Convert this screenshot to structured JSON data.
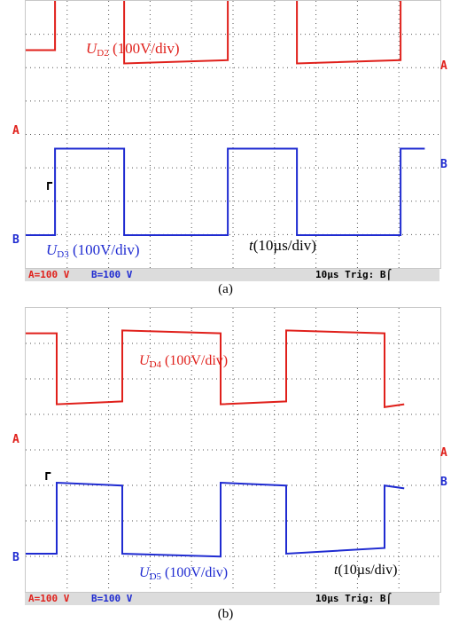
{
  "panels": [
    {
      "caption": "(a)",
      "status_a": "A=100 V",
      "status_b": "B=100 V",
      "status_time": "10µs Trig: B⌠",
      "trace_a": {
        "symbol": "U",
        "sub": "D2",
        "unit": "(100V/div)",
        "color": "#e0201b"
      },
      "trace_b": {
        "symbol": "U",
        "sub": "D3",
        "unit": "(100V/div)",
        "color": "#1f2bd1"
      },
      "time_label": {
        "symbol": "t",
        "unit": "(10µs/div)"
      }
    },
    {
      "caption": "(b)",
      "status_a": "A=100 V",
      "status_b": "B=100 V",
      "status_time": "10µs Trig: B⌠",
      "trace_a": {
        "symbol": "U",
        "sub": "D4",
        "unit": "(100V/div)",
        "color": "#e0201b"
      },
      "trace_b": {
        "symbol": "U",
        "sub": "D5",
        "unit": "(100V/div)",
        "color": "#1f2bd1"
      },
      "time_label": {
        "symbol": "t",
        "unit": "(10µs/div)"
      }
    }
  ],
  "channel_labels": {
    "a": "A",
    "b": "B"
  },
  "colors": {
    "status_a": "#e0201b",
    "status_b": "#1f2bd1",
    "grid": "#555555",
    "status_bg": "#dcdcdc"
  },
  "chart_data": [
    {
      "type": "line",
      "xlabel": "t(10µs/div)",
      "x_unit": "µs",
      "divisions": {
        "x": 10,
        "y": 8
      },
      "series": [
        {
          "name": "UD2",
          "volts_per_div": 100,
          "x": [
            0,
            4.5,
            4.5,
            14.5,
            14.5,
            29.5,
            29.5,
            39.5,
            39.5,
            54.5,
            54.5,
            58
          ],
          "y_div": [
            2.6,
            2.6,
            5.1,
            5.0,
            2.2,
            2.3,
            5.1,
            5.0,
            2.2,
            2.3,
            5.0,
            5.0
          ]
        },
        {
          "name": "UD3",
          "volts_per_div": 100,
          "x": [
            0,
            4.5,
            4.5,
            14.5,
            14.5,
            29.5,
            29.5,
            39.5,
            39.5,
            54.5,
            54.5,
            58
          ],
          "y_div": [
            0,
            0,
            2.6,
            2.6,
            0,
            0,
            2.6,
            2.6,
            0,
            0,
            2.6,
            2.6
          ]
        }
      ]
    },
    {
      "type": "line",
      "xlabel": "t(10µs/div)",
      "x_unit": "µs",
      "divisions": {
        "x": 10,
        "y": 8
      },
      "series": [
        {
          "name": "UD4",
          "volts_per_div": 100,
          "x": [
            0,
            5.0,
            5.0,
            15.0,
            15.0,
            30.0,
            30.0,
            40.0,
            40.0,
            55.0,
            55.0,
            58
          ],
          "y_div": [
            5.2,
            5.2,
            2.7,
            2.8,
            5.3,
            5.2,
            2.7,
            2.8,
            5.3,
            5.2,
            2.6,
            2.7
          ]
        },
        {
          "name": "UD5",
          "volts_per_div": 100,
          "x": [
            0,
            5.0,
            5.0,
            15.0,
            15.0,
            30.0,
            30.0,
            40.0,
            40.0,
            55.0,
            55.0,
            58
          ],
          "y_div": [
            0,
            0,
            2.5,
            2.4,
            0,
            -0.1,
            2.5,
            2.4,
            0,
            0.2,
            2.4,
            2.3
          ]
        }
      ]
    }
  ]
}
